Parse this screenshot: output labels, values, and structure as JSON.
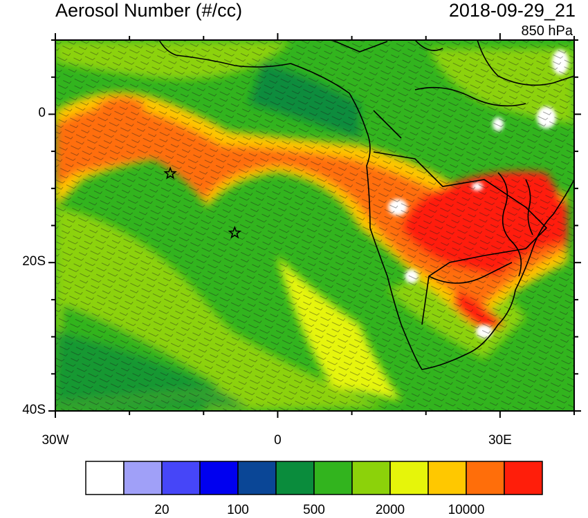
{
  "header": {
    "title": "Aerosol Number (#/cc)",
    "datetime": "2018-09-29_21",
    "level": "850 hPa"
  },
  "axes": {
    "x_ticks": [
      {
        "value": -30,
        "label": "30W"
      },
      {
        "value": 0,
        "label": "0"
      },
      {
        "value": 30,
        "label": "30E"
      }
    ],
    "y_ticks": [
      {
        "value": 0,
        "label": "0"
      },
      {
        "value": -20,
        "label": "20S"
      },
      {
        "value": -40,
        "label": "40S"
      }
    ],
    "lon_range": [
      -30,
      40
    ],
    "lat_range": [
      -40,
      10
    ]
  },
  "colorbar": {
    "colors": [
      "#ffffff",
      "#a0a0f8",
      "#4646f8",
      "#0000f0",
      "#0a4696",
      "#0a8c3c",
      "#32b41e",
      "#8cd20a",
      "#e6f50a",
      "#ffc800",
      "#ff6e0a",
      "#ff1e0a"
    ],
    "labels": [
      {
        "after_box": 2,
        "text": "20"
      },
      {
        "after_box": 4,
        "text": "100"
      },
      {
        "after_box": 6,
        "text": "500"
      },
      {
        "after_box": 8,
        "text": "2000"
      },
      {
        "after_box": 10,
        "text": "10000"
      }
    ]
  },
  "markers": [
    {
      "name": "star-marker-1",
      "lon": -14.5,
      "lat": -8
    },
    {
      "name": "star-marker-2",
      "lon": -5.8,
      "lat": -16
    }
  ]
}
